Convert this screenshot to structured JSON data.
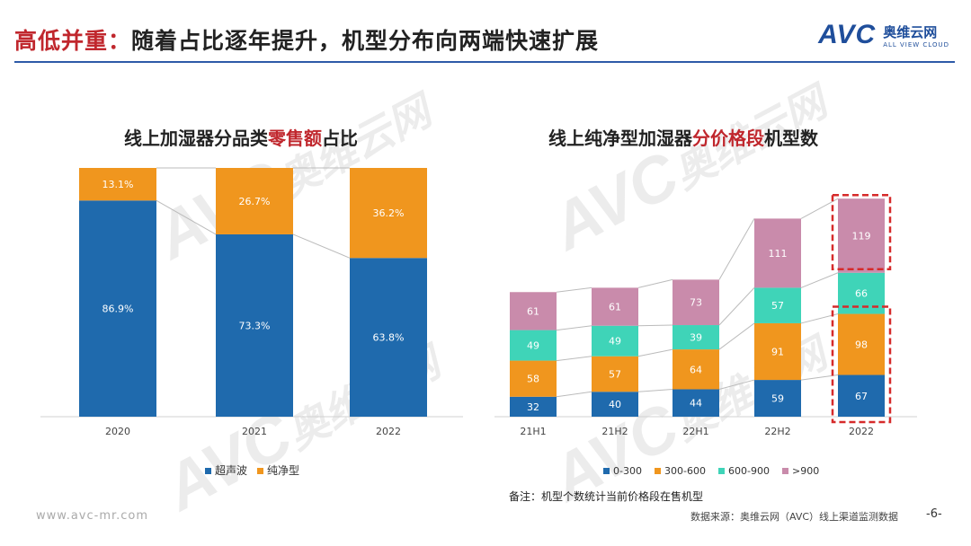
{
  "header": {
    "title_prefix": "高低并重：",
    "title_main": "随着占比逐年提升，机型分布向两端快速扩展",
    "logo_mark": "AVC",
    "logo_cn": "奥维云网",
    "logo_en": "ALL VIEW CLOUD"
  },
  "left_chart_title": {
    "pre": "线上加湿器分品类",
    "hl": "零售额",
    "post": "占比"
  },
  "right_chart_title": {
    "pre": "线上纯净型加湿器",
    "hl": "分价格段",
    "post": "机型数"
  },
  "chart_data": [
    {
      "type": "bar",
      "stacked": true,
      "percent": true,
      "title": "线上加湿器分品类零售额占比",
      "categories": [
        "2020",
        "2021",
        "2022"
      ],
      "series": [
        {
          "name": "超声波",
          "values": [
            86.9,
            73.3,
            63.8
          ],
          "labels": [
            "86.9%",
            "73.3%",
            "63.8%"
          ],
          "color": "#1f6aad"
        },
        {
          "name": "纯净型",
          "values": [
            13.1,
            26.7,
            36.2
          ],
          "labels": [
            "13.1%",
            "26.7%",
            "36.2%"
          ],
          "color": "#f0961e"
        }
      ],
      "ylim": [
        0,
        100
      ],
      "legend": "bottom"
    },
    {
      "type": "bar",
      "stacked": true,
      "title": "线上纯净型加湿器分价格段机型数",
      "categories": [
        "21H1",
        "21H2",
        "22H1",
        "22H2",
        "2022"
      ],
      "series": [
        {
          "name": "0-300",
          "values": [
            32,
            40,
            44,
            59,
            67
          ],
          "color": "#1f6aad"
        },
        {
          "name": "300-600",
          "values": [
            58,
            57,
            64,
            91,
            98
          ],
          "color": "#f0961e"
        },
        {
          "name": "600-900",
          "values": [
            49,
            49,
            39,
            57,
            66
          ],
          "color": "#3fd4b8"
        },
        {
          "name": ">900",
          "values": [
            61,
            61,
            73,
            111,
            119
          ],
          "color": "#c98bab"
        }
      ],
      "ylim": [
        0,
        380
      ],
      "legend": "bottom",
      "highlight_color": "#d62a2a"
    }
  ],
  "note": "备注：机型个数统计当前价格段在售机型",
  "footer": {
    "website": "www.avc-mr.com",
    "source": "数据来源：奥维云网（AVC）线上渠道监测数据",
    "page": "-6-"
  },
  "watermark": {
    "mark": "AVC",
    "cn": "奥维云网",
    "en": "ALL VIEW CLOUD"
  }
}
